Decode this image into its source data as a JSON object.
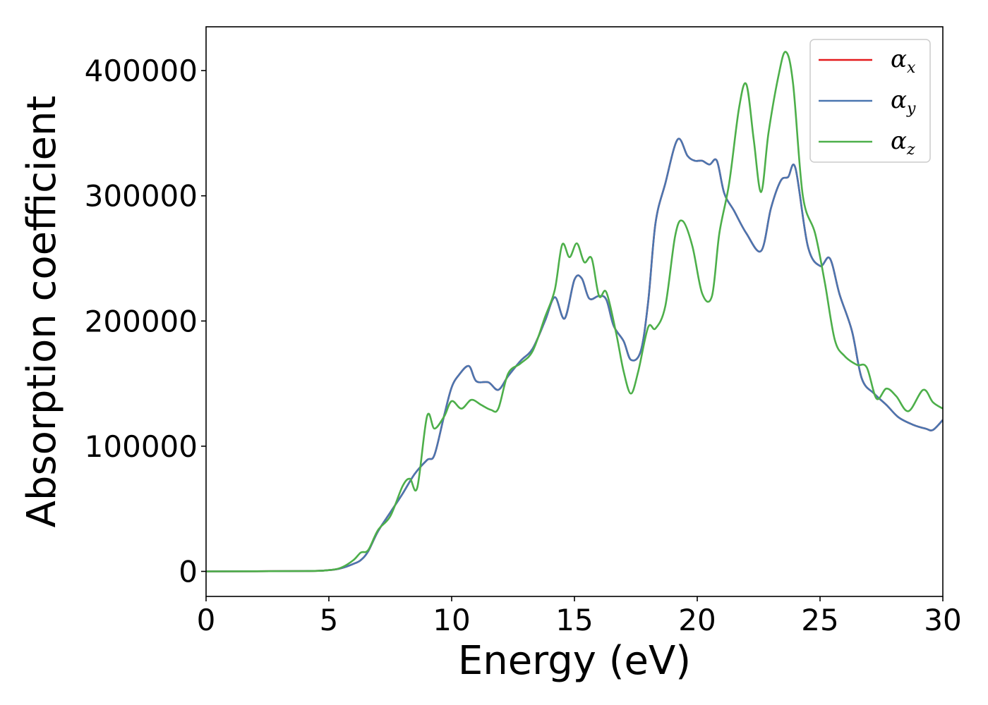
{
  "chart_data": {
    "type": "line",
    "xlabel": "Energy (eV)",
    "ylabel": "Absorption coefficient",
    "xlim": [
      0,
      30
    ],
    "ylim": [
      -20000,
      435000
    ],
    "xticks": [
      0,
      5,
      10,
      15,
      20,
      25,
      30
    ],
    "xtick_labels": [
      "0",
      "5",
      "10",
      "15",
      "20",
      "25",
      "30"
    ],
    "yticks": [
      0,
      100000,
      200000,
      300000,
      400000
    ],
    "ytick_labels": [
      "0",
      "100000",
      "200000",
      "300000",
      "400000"
    ],
    "grid": false,
    "legend_position": "top-right",
    "series": [
      {
        "name": "α",
        "name_sub": "x",
        "color": "#e41a1c",
        "x": [
          0,
          4,
          5,
          5.5,
          6,
          6.3,
          6.6,
          7,
          7.5,
          8,
          8.5,
          9,
          9.3,
          9.7,
          10,
          10.3,
          10.7,
          11,
          11.5,
          11.9,
          12.3,
          12.8,
          13.3,
          13.8,
          14.2,
          14.6,
          15,
          15.3,
          15.6,
          16,
          16.3,
          16.6,
          17,
          17.3,
          17.7,
          18,
          18.3,
          18.7,
          19.2,
          19.6,
          19.9,
          20.2,
          20.5,
          20.8,
          21.1,
          21.5,
          22,
          22.6,
          23,
          23.4,
          23.7,
          24,
          24.5,
          25,
          25.4,
          25.8,
          26.3,
          26.7,
          27.2,
          27.7,
          28.2,
          28.8,
          29.3,
          29.6,
          30
        ],
        "y": [
          0,
          300,
          1000,
          2500,
          6000,
          9000,
          16000,
          32000,
          47000,
          62000,
          78000,
          89000,
          93000,
          125000,
          147000,
          157000,
          164000,
          152000,
          151000,
          145000,
          156000,
          168000,
          178000,
          200000,
          219000,
          202000,
          233000,
          234000,
          218000,
          220000,
          217000,
          196000,
          184000,
          169000,
          176000,
          215000,
          278000,
          310000,
          345000,
          332000,
          328000,
          328000,
          325000,
          328000,
          302000,
          288000,
          270000,
          256000,
          290000,
          312000,
          315000,
          322000,
          260000,
          244000,
          250000,
          221000,
          192000,
          154000,
          142000,
          133000,
          123000,
          117000,
          114000,
          113000,
          121000
        ]
      },
      {
        "name": "α",
        "name_sub": "y",
        "color": "#4a76b0",
        "x": [
          0,
          4,
          5,
          5.5,
          6,
          6.3,
          6.6,
          7,
          7.5,
          8,
          8.5,
          9,
          9.3,
          9.7,
          10,
          10.3,
          10.7,
          11,
          11.5,
          11.9,
          12.3,
          12.8,
          13.3,
          13.8,
          14.2,
          14.6,
          15,
          15.3,
          15.6,
          16,
          16.3,
          16.6,
          17,
          17.3,
          17.7,
          18,
          18.3,
          18.7,
          19.2,
          19.6,
          19.9,
          20.2,
          20.5,
          20.8,
          21.1,
          21.5,
          22,
          22.6,
          23,
          23.4,
          23.7,
          24,
          24.5,
          25,
          25.4,
          25.8,
          26.3,
          26.7,
          27.2,
          27.7,
          28.2,
          28.8,
          29.3,
          29.6,
          30
        ],
        "y": [
          0,
          300,
          1000,
          2500,
          6000,
          9000,
          16000,
          32000,
          47000,
          62000,
          78000,
          89000,
          93000,
          125000,
          147000,
          157000,
          164000,
          152000,
          151000,
          145000,
          156000,
          168000,
          178000,
          200000,
          219000,
          202000,
          233000,
          234000,
          218000,
          220000,
          217000,
          196000,
          184000,
          169000,
          176000,
          215000,
          278000,
          310000,
          345000,
          332000,
          328000,
          328000,
          325000,
          328000,
          302000,
          288000,
          270000,
          256000,
          290000,
          312000,
          315000,
          322000,
          260000,
          244000,
          250000,
          221000,
          192000,
          154000,
          142000,
          133000,
          123000,
          117000,
          114000,
          113000,
          121000
        ]
      },
      {
        "name": "α",
        "name_sub": "z",
        "color": "#4daf4a",
        "x": [
          0,
          4,
          5,
          5.5,
          6,
          6.3,
          6.6,
          7,
          7.5,
          8,
          8.3,
          8.6,
          9,
          9.3,
          9.7,
          10,
          10.4,
          10.8,
          11.2,
          11.6,
          11.9,
          12.3,
          12.8,
          13.3,
          13.8,
          14.2,
          14.5,
          14.8,
          15.1,
          15.4,
          15.7,
          16,
          16.3,
          16.7,
          17,
          17.3,
          17.6,
          18,
          18.3,
          18.7,
          19.1,
          19.4,
          19.8,
          20.2,
          20.6,
          20.9,
          21.3,
          21.7,
          22,
          22.3,
          22.6,
          22.9,
          23.3,
          23.6,
          23.9,
          24.3,
          24.8,
          25.2,
          25.6,
          26,
          26.5,
          26.9,
          27.3,
          27.7,
          28.1,
          28.6,
          29.2,
          29.6,
          30
        ],
        "y": [
          0,
          300,
          1000,
          3000,
          9000,
          15000,
          17000,
          33000,
          44000,
          68000,
          74000,
          67000,
          124000,
          114000,
          124000,
          136000,
          130000,
          137000,
          133000,
          129000,
          130000,
          158000,
          166000,
          176000,
          203000,
          225000,
          261000,
          251000,
          262000,
          247000,
          250000,
          220000,
          223000,
          190000,
          160000,
          142000,
          160000,
          195000,
          194000,
          212000,
          268000,
          280000,
          260000,
          222000,
          220000,
          270000,
          310000,
          370000,
          389000,
          345000,
          303000,
          350000,
          395000,
          415000,
          390000,
          300000,
          270000,
          230000,
          185000,
          172000,
          165000,
          163000,
          138000,
          146000,
          140000,
          128000,
          145000,
          135000,
          130000
        ]
      }
    ]
  }
}
